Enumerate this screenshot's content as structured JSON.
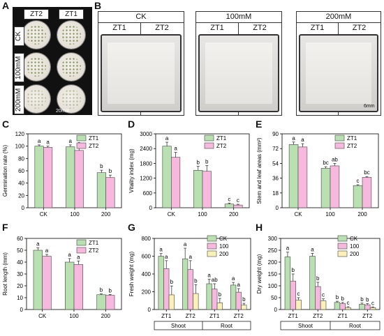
{
  "panels": {
    "A": {
      "letter": "A",
      "col_labels": [
        "ZT2",
        "ZT1"
      ],
      "row_labels": [
        "CK",
        "100mM",
        "200mM"
      ],
      "scale": "20mm"
    },
    "B": {
      "letter": "B",
      "groups": [
        {
          "title": "CK",
          "subs": [
            "ZT1",
            "ZT2"
          ]
        },
        {
          "title": "100mM",
          "subs": [
            "ZT1",
            "ZT2"
          ]
        },
        {
          "title": "200mM",
          "subs": [
            "ZT1",
            "ZT2"
          ]
        }
      ],
      "scale": "6mm"
    },
    "C": {
      "letter": "C"
    },
    "D": {
      "letter": "D"
    },
    "E": {
      "letter": "E"
    },
    "F": {
      "letter": "F"
    },
    "G": {
      "letter": "G"
    },
    "H": {
      "letter": "H"
    }
  },
  "colors": {
    "ZT1": "#b8e0b0",
    "ZT2": "#f6b8dc",
    "CK": "#b8e0b0",
    "c100": "#f6b8dc",
    "c200": "#fbf1b8",
    "edge": "#444444"
  },
  "chart_data": [
    {
      "id": "C",
      "type": "bar",
      "title": "",
      "xlabel": "",
      "ylabel": "Germination rate (%)",
      "categories": [
        "CK",
        "100",
        "200"
      ],
      "ylim": [
        0,
        120
      ],
      "yticks": [
        "0",
        "20",
        "40",
        "60",
        "80",
        "100",
        "120"
      ],
      "series": [
        {
          "name": "ZT1",
          "values": [
            100,
            99,
            57
          ],
          "err": [
            2,
            3,
            4
          ],
          "letters": [
            "a",
            "a",
            "b"
          ]
        },
        {
          "name": "ZT2",
          "values": [
            98,
            93,
            49
          ],
          "err": [
            2,
            5,
            4
          ],
          "letters": [
            "a",
            "a",
            "b"
          ]
        }
      ]
    },
    {
      "id": "D",
      "type": "bar",
      "title": "",
      "xlabel": "",
      "ylabel": "Vitality index (mg)",
      "categories": [
        "CK",
        "100",
        "200"
      ],
      "ylim": [
        0,
        3000
      ],
      "yticks": [
        "0",
        "600",
        "1200",
        "1800",
        "2400",
        "3000"
      ],
      "series": [
        {
          "name": "ZT1",
          "values": [
            2500,
            1520,
            150
          ],
          "err": [
            160,
            160,
            40
          ],
          "letters": [
            "a",
            "b",
            "c"
          ]
        },
        {
          "name": "ZT2",
          "values": [
            2050,
            1480,
            110
          ],
          "err": [
            200,
            230,
            30
          ],
          "letters": [
            "a",
            "b",
            "c"
          ]
        }
      ]
    },
    {
      "id": "E",
      "type": "bar",
      "title": "",
      "xlabel": "",
      "ylabel": "Stem and leaf areas (mm²)",
      "categories": [
        "CK",
        "100",
        "200"
      ],
      "ylim": [
        0,
        90
      ],
      "yticks": [
        "0",
        "18",
        "36",
        "54",
        "72",
        "90"
      ],
      "series": [
        {
          "name": "ZT1",
          "values": [
            77,
            48,
            27
          ],
          "err": [
            3,
            2,
            1
          ],
          "letters": [
            "a",
            "bc",
            "c"
          ]
        },
        {
          "name": "ZT2",
          "values": [
            74,
            51,
            37
          ],
          "err": [
            4,
            3,
            1
          ],
          "letters": [
            "a",
            "ab",
            "bc"
          ]
        }
      ]
    },
    {
      "id": "F",
      "type": "bar",
      "title": "",
      "xlabel": "",
      "ylabel": "Root length (mm)",
      "categories": [
        "CK",
        "100",
        "200"
      ],
      "ylim": [
        0,
        60
      ],
      "yticks": [
        "0",
        "10",
        "20",
        "30",
        "40",
        "50",
        "60"
      ],
      "series": [
        {
          "name": "ZT1",
          "values": [
            50,
            40,
            12.5
          ],
          "err": [
            2,
            3,
            0.7
          ],
          "letters": [
            "a",
            "a",
            "b"
          ]
        },
        {
          "name": "ZT2",
          "values": [
            45,
            38,
            12
          ],
          "err": [
            1.5,
            3,
            0.7
          ],
          "letters": [
            "a",
            "a",
            "b"
          ]
        }
      ]
    },
    {
      "id": "G",
      "type": "bar",
      "title": "",
      "xlabel": "",
      "ylabel": "Fresh weight (mg)",
      "categories": [
        "ZT1",
        "ZT2",
        "ZT1",
        "ZT2"
      ],
      "groups": [
        "Shoot",
        "Root"
      ],
      "ylim": [
        0,
        800
      ],
      "yticks": [
        "0",
        "200",
        "400",
        "600",
        "800"
      ],
      "series": [
        {
          "name": "CK",
          "values": [
            600,
            570,
            290,
            275
          ],
          "err": [
            30,
            120,
            50,
            30
          ],
          "letters": [
            "a",
            "a",
            "a",
            "a"
          ]
        },
        {
          "name": "100",
          "values": [
            460,
            450,
            230,
            195
          ],
          "err": [
            90,
            100,
            60,
            40
          ],
          "letters": [
            "a",
            "a",
            "ab",
            "a"
          ]
        },
        {
          "name": "200",
          "values": [
            165,
            180,
            75,
            50
          ],
          "err": [
            100,
            100,
            50,
            20
          ],
          "letters": [
            "b",
            "b",
            "b",
            "b"
          ]
        }
      ]
    },
    {
      "id": "H",
      "type": "bar",
      "title": "",
      "xlabel": "",
      "ylabel": "Dry weight (mg)",
      "categories": [
        "ZT1",
        "ZT2",
        "ZT1",
        "ZT2"
      ],
      "groups": [
        "Shoot",
        "Root"
      ],
      "ylim": [
        0,
        300
      ],
      "yticks": [
        "0",
        "50",
        "100",
        "150",
        "200",
        "250",
        "300"
      ],
      "series": [
        {
          "name": "CK",
          "values": [
            222,
            225,
            30,
            22
          ],
          "err": [
            20,
            12,
            5,
            5
          ],
          "letters": [
            "a",
            "a",
            "b",
            "b"
          ]
        },
        {
          "name": "100",
          "values": [
            120,
            97,
            25,
            20
          ],
          "err": [
            30,
            18,
            5,
            5
          ],
          "letters": [
            "b",
            "b",
            "b",
            "b"
          ]
        },
        {
          "name": "200",
          "values": [
            40,
            37,
            8,
            8
          ],
          "err": [
            10,
            8,
            4,
            3
          ],
          "letters": [
            "c",
            "c",
            "c",
            "c"
          ]
        }
      ]
    }
  ]
}
